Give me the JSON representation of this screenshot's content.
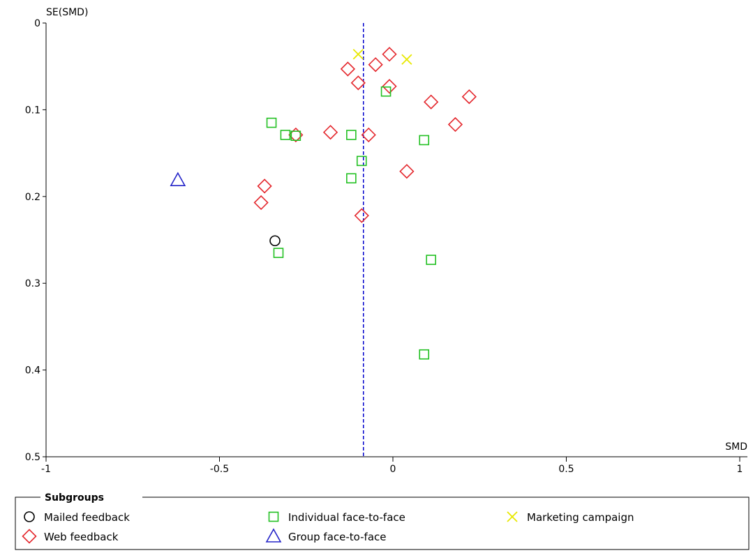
{
  "chart_data": {
    "type": "scatter",
    "title": "",
    "xlabel": "SMD",
    "ylabel": "SE(SMD)",
    "xlim": [
      -1,
      1
    ],
    "ylim": [
      0,
      0.5
    ],
    "y_inverted": true,
    "x_ticks": [
      -1,
      -0.5,
      0,
      0.5,
      1
    ],
    "x_tick_labels": [
      "-1",
      "-0.5",
      "0",
      "0.5",
      "1"
    ],
    "y_ticks": [
      0,
      0.1,
      0.2,
      0.3,
      0.4,
      0.5
    ],
    "y_tick_labels": [
      "0",
      "0.1",
      "0.2",
      "0.3",
      "0.4",
      "0.5"
    ],
    "pooled_estimate": -0.085,
    "legend": {
      "title": "Subgroups",
      "placement": "bottom"
    },
    "series": [
      {
        "name": "Mailed feedback",
        "marker": "circle",
        "color": "#000000",
        "points": [
          [
            -0.34,
            0.251
          ]
        ]
      },
      {
        "name": "Web feedback",
        "marker": "diamond",
        "color": "#e4262c",
        "points": [
          [
            -0.01,
            0.036
          ],
          [
            -0.05,
            0.048
          ],
          [
            -0.13,
            0.053
          ],
          [
            -0.1,
            0.069
          ],
          [
            -0.01,
            0.073
          ],
          [
            0.22,
            0.085
          ],
          [
            0.11,
            0.091
          ],
          [
            0.18,
            0.117
          ],
          [
            -0.18,
            0.126
          ],
          [
            -0.28,
            0.129
          ],
          [
            -0.07,
            0.129
          ],
          [
            0.04,
            0.171
          ],
          [
            -0.37,
            0.188
          ],
          [
            -0.38,
            0.207
          ],
          [
            -0.09,
            0.222
          ]
        ]
      },
      {
        "name": "Individual face-to-face",
        "marker": "square",
        "color": "#22c022",
        "points": [
          [
            -0.02,
            0.079
          ],
          [
            -0.35,
            0.115
          ],
          [
            -0.31,
            0.129
          ],
          [
            -0.28,
            0.13
          ],
          [
            -0.12,
            0.129
          ],
          [
            0.09,
            0.135
          ],
          [
            -0.09,
            0.159
          ],
          [
            -0.12,
            0.179
          ],
          [
            -0.33,
            0.265
          ],
          [
            0.11,
            0.273
          ],
          [
            0.09,
            0.382
          ]
        ]
      },
      {
        "name": "Group face-to-face",
        "marker": "triangle",
        "color": "#2323c8",
        "points": [
          [
            -0.62,
            0.181
          ]
        ]
      },
      {
        "name": "Marketing campaign",
        "marker": "x",
        "color": "#e8e800",
        "points": [
          [
            -0.1,
            0.036
          ],
          [
            0.04,
            0.042
          ]
        ]
      }
    ],
    "legend_items": [
      {
        "name": "Mailed feedback",
        "marker": "circle",
        "color": "#000000"
      },
      {
        "name": "Individual face-to-face",
        "marker": "square",
        "color": "#22c022"
      },
      {
        "name": "Marketing campaign",
        "marker": "x",
        "color": "#e8e800"
      },
      {
        "name": "Web feedback",
        "marker": "diamond",
        "color": "#e4262c"
      },
      {
        "name": "Group face-to-face",
        "marker": "triangle",
        "color": "#2323c8"
      }
    ],
    "reference_line_color": "#0000cc"
  }
}
